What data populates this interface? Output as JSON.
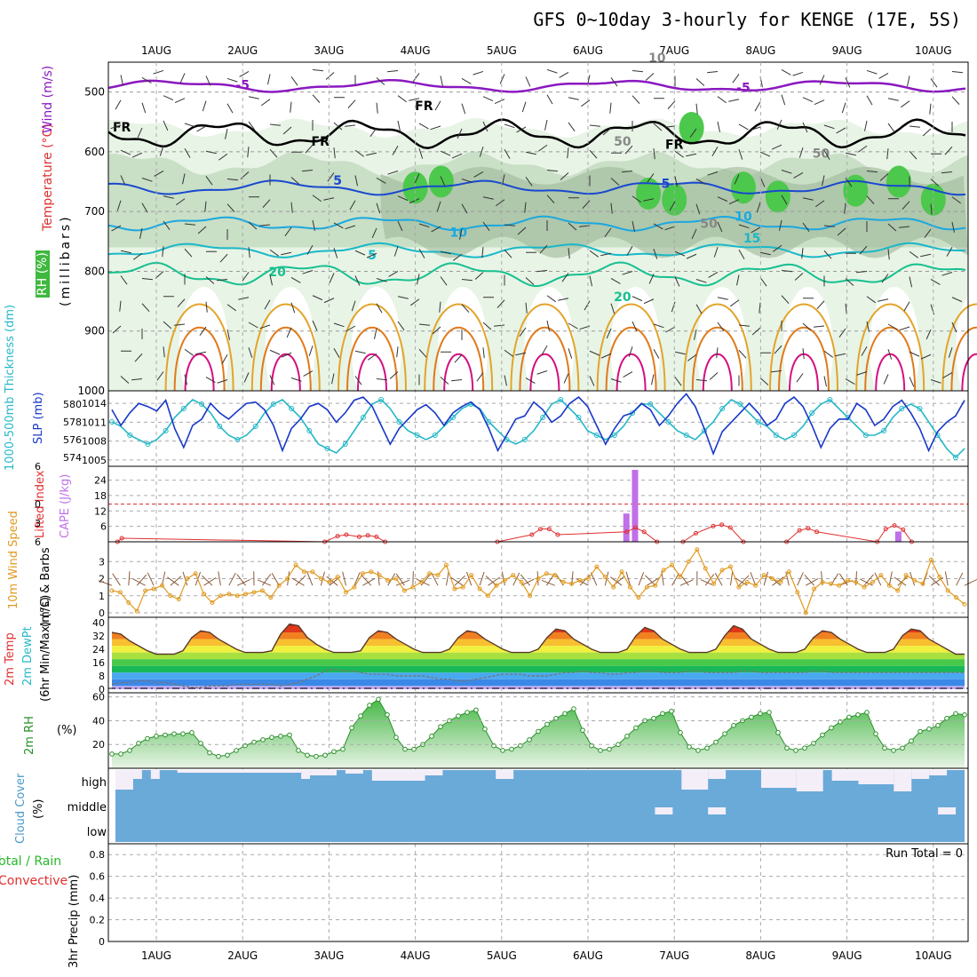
{
  "title": "GFS 0~10day 3-hourly for KENGE (17E, 5S)",
  "dates": [
    "1AUG",
    "2AUG",
    "3AUG",
    "4AUG",
    "5AUG",
    "6AUG",
    "7AUG",
    "8AUG",
    "9AUG",
    "10AUG"
  ],
  "colors": {
    "temp_warm": "#e3a42a",
    "temp_orange": "#e07a1a",
    "temp_hot": "#d41080",
    "temp_20": "#16c090",
    "temp_15": "#18b8c8",
    "temp_10": "#1aa8e0",
    "temp_5": "#1848d0",
    "temp_neg5": "#8a18c0",
    "freezing": "#000000",
    "rh_light": "#e8f4e6",
    "rh_mid": "#c9dfc6",
    "rh_dark": "#9eb89a",
    "rh_green": "#4cc84c",
    "slp": "#1838c8",
    "thickness": "#28b8c8",
    "cape": "#c070e8",
    "lifted": "#e03030",
    "wind_speed": "#e09a20",
    "barbs": "#8a5a3a",
    "rh2m": "#289028",
    "cloud": "#6aaad8",
    "cloud_clear": "#f4eef8"
  },
  "labels": {
    "wind": "Wind (m/s)",
    "temperature": "Temperature (°C)",
    "rh": "RH (%)",
    "millibars": "(millibars)",
    "thickness": "1000-500mb Thickness (dm)",
    "slp": "SLP (mb)",
    "lifted": "Lifted Index",
    "cape": "CAPE (J/kg)",
    "wind10_a": "10m Wind Speed",
    "wind10_b": "(m/s) & Barbs",
    "temp2m_a": "2m Temp",
    "temp2m_b": "2m DewPt",
    "temp2m_c": "(6hr Min/Max) (°C)",
    "rh2m": "2m RH",
    "rh2m_unit": "(%)",
    "cloud_a": "Cloud Cover",
    "cloud_b": "(%)",
    "precip_a": "Total / Rain",
    "precip_b": "Convective",
    "precip_c": "3hr Precip (mm)",
    "run_total": "Run Total = 0",
    "cloud_levels": [
      "high",
      "middle",
      "low"
    ]
  },
  "chart_data": [
    {
      "type": "heatmap",
      "name": "upper-air",
      "ylabel": "millibars",
      "y_ticks": [
        500,
        600,
        700,
        800,
        900,
        1000
      ],
      "ylim": [
        1000,
        450
      ],
      "contour_labels": [
        "-5",
        "-5",
        "5",
        "5",
        "5",
        "10",
        "10",
        "15",
        "20",
        "20",
        "FR",
        "FR",
        "FR",
        "FR",
        "50",
        "50",
        "50",
        "10"
      ],
      "rh_bands_percent": [
        50,
        70,
        90
      ]
    },
    {
      "type": "line",
      "name": "slp-thickness",
      "y_left_ticks": [
        574,
        576,
        578,
        580
      ],
      "y_right_ticks": [
        1005,
        1008,
        1011,
        1014
      ],
      "series": [
        {
          "name": "SLP (mb)",
          "values": [
            1013.0,
            1010.5,
            1012.5,
            1014.0,
            1013.5,
            1012.8,
            1014.5,
            1010.0,
            1007.0,
            1010.5,
            1011.5,
            1014.0,
            1012.5,
            1011.5,
            1012.8,
            1014.0,
            1014.2,
            1013.0,
            1010.5,
            1006.5,
            1010.0,
            1011.5,
            1013.5,
            1014.0,
            1013.0,
            1011.0,
            1012.5,
            1014.5,
            1015.0,
            1013.5,
            1010.5,
            1007.5,
            1010.0,
            1011.5,
            1013.0,
            1013.8,
            1012.5,
            1010.5,
            1012.5,
            1013.5,
            1014.2,
            1013.0,
            1010.0,
            1006.5,
            1009.0,
            1011.5,
            1012.0,
            1014.2,
            1013.0,
            1011.0,
            1012.0,
            1014.0,
            1015.0,
            1013.5,
            1010.5,
            1007.5,
            1010.0,
            1012.0,
            1012.5,
            1014.0,
            1013.0,
            1010.5,
            1012.0,
            1014.0,
            1015.5,
            1013.5,
            1010.0,
            1006.0,
            1009.5,
            1011.0,
            1012.5,
            1014.0,
            1012.5,
            1010.5,
            1011.5,
            1014.0,
            1015.0,
            1013.5,
            1010.5,
            1007.0,
            1010.0,
            1011.5,
            1011.5,
            1014.0,
            1013.0,
            1010.5,
            1011.5,
            1013.5,
            1014.5,
            1012.5,
            1010.0,
            1006.5,
            1009.5,
            1011.0,
            1012.0,
            1014.5
          ]
        },
        {
          "name": "1000-500mb Thickness (dm)",
          "values": [
            578.0,
            577.5,
            576.5,
            576.0,
            575.5,
            576.0,
            577.0,
            578.5,
            579.5,
            580.5,
            580.0,
            579.0,
            577.5,
            576.5,
            576.0,
            576.5,
            577.5,
            579.0,
            580.0,
            580.5,
            579.5,
            578.5,
            577.0,
            575.5,
            575.0,
            574.5,
            575.5,
            577.0,
            578.5,
            580.0,
            580.5,
            579.5,
            578.0,
            577.0,
            576.5,
            576.0,
            576.5,
            577.5,
            578.5,
            579.5,
            580.0,
            579.5,
            578.0,
            577.0,
            576.0,
            575.5,
            576.0,
            577.0,
            578.5,
            580.0,
            580.5,
            579.5,
            578.5,
            577.0,
            576.5,
            576.0,
            576.5,
            577.5,
            579.0,
            580.0,
            580.0,
            579.0,
            578.0,
            577.0,
            576.5,
            576.0,
            577.0,
            578.0,
            579.5,
            580.5,
            580.0,
            579.0,
            578.0,
            577.5,
            576.5,
            576.0,
            576.5,
            577.5,
            579.0,
            580.0,
            580.5,
            579.5,
            578.5,
            577.5,
            576.5,
            576.5,
            577.0,
            578.5,
            579.5,
            580.0,
            579.5,
            578.0,
            576.5,
            575.0,
            574.0,
            575.0
          ]
        }
      ]
    },
    {
      "type": "bar",
      "name": "cape-lifted",
      "y_left_ticks": [
        6,
        0,
        -3,
        -6
      ],
      "y_right_ticks": [
        6,
        12,
        18,
        24
      ],
      "series": [
        {
          "name": "CAPE (J/kg)",
          "x_days": [
            6.45,
            6.55,
            9.6
          ],
          "values": [
            11,
            28,
            4
          ]
        },
        {
          "name": "Lifted Index",
          "x_days": [
            0.55,
            0.6,
            2.95,
            3.1,
            3.2,
            3.35,
            3.45,
            3.55,
            3.65,
            4.95,
            5.35,
            5.45,
            5.55,
            5.65,
            6.45,
            6.55,
            6.65,
            6.8,
            7.1,
            7.25,
            7.45,
            7.55,
            7.65,
            7.8,
            8.3,
            8.45,
            8.55,
            8.65,
            9.35,
            9.45,
            9.55,
            9.65,
            9.75
          ],
          "values": [
            6,
            5.5,
            6,
            5.2,
            5.0,
            5.3,
            5.1,
            5.3,
            6,
            6,
            5,
            4.2,
            4.2,
            5,
            4.6,
            4.0,
            4.6,
            6,
            6,
            4.8,
            3.8,
            3.6,
            4.0,
            6,
            6,
            4.4,
            4.1,
            4.6,
            6,
            4.2,
            3.7,
            4.3,
            6
          ]
        }
      ]
    },
    {
      "type": "line",
      "name": "wind10m",
      "y_ticks": [
        0,
        1,
        2,
        3
      ],
      "ylabel": "m/s",
      "series": [
        {
          "name": "10m Wind Speed",
          "values": [
            1.3,
            1.2,
            0.6,
            0.1,
            1.3,
            1.4,
            1.6,
            1.0,
            0.8,
            2.0,
            2.3,
            1.1,
            0.6,
            1.0,
            1.1,
            1.0,
            1.1,
            1.2,
            1.3,
            0.9,
            1.6,
            2.0,
            2.8,
            2.4,
            2.4,
            2.0,
            1.8,
            2.1,
            1.2,
            1.5,
            2.3,
            2.4,
            2.2,
            1.9,
            2.0,
            1.3,
            1.5,
            1.8,
            2.3,
            2.2,
            2.8,
            1.4,
            1.5,
            2.2,
            1.4,
            1.0,
            1.6,
            1.9,
            2.2,
            1.8,
            1.0,
            2.0,
            2.3,
            2.2,
            1.8,
            1.7,
            1.9,
            2.0,
            2.7,
            2.1,
            1.5,
            2.4,
            1.5,
            0.9,
            1.5,
            1.6,
            2.5,
            2.8,
            2.1,
            3.0,
            3.7,
            2.6,
            1.7,
            2.5,
            2.7,
            1.5,
            1.8,
            1.6,
            2.2,
            2.0,
            1.8,
            2.4,
            1.2,
            0.0,
            1.4,
            1.8,
            1.7,
            1.6,
            1.9,
            1.8,
            1.5,
            1.8,
            2.2,
            1.6,
            1.3,
            2.2,
            1.9,
            1.7,
            3.1,
            2.1,
            1.3,
            0.9,
            0.5
          ]
        }
      ]
    },
    {
      "type": "area",
      "name": "temp2m",
      "y_ticks": [
        0,
        8,
        16,
        24,
        32,
        40
      ],
      "ylabel": "°C",
      "series": [
        {
          "name": "2m Temp",
          "values": [
            34,
            33,
            29,
            26,
            23,
            21,
            21,
            21,
            23,
            31,
            35,
            34,
            30,
            27,
            24,
            22,
            22,
            22,
            23,
            33,
            39,
            38,
            31,
            27,
            24,
            22,
            22,
            22,
            23,
            31,
            35,
            34,
            30,
            27,
            24,
            22,
            22,
            22,
            24,
            31,
            35,
            34,
            30,
            27,
            24,
            22,
            22,
            22,
            24,
            31,
            36,
            35,
            30,
            27,
            24,
            22,
            22,
            22,
            24,
            32,
            37,
            35,
            30,
            27,
            24,
            22,
            22,
            22,
            24,
            32,
            38,
            36,
            30,
            27,
            24,
            22,
            22,
            22,
            24,
            31,
            35,
            34,
            30,
            27,
            24,
            22,
            22,
            22,
            24,
            32,
            36,
            35,
            30,
            27,
            24,
            21,
            21
          ]
        },
        {
          "name": "2m DewPt",
          "values": [
            3,
            4,
            4,
            5,
            5,
            4,
            4,
            3,
            2,
            1,
            1,
            2,
            2,
            2,
            3,
            3,
            3,
            3,
            3,
            2,
            3,
            4,
            6,
            8,
            11,
            12,
            11,
            11,
            10,
            9,
            9,
            9,
            8,
            8,
            8,
            8,
            7,
            6,
            6,
            5,
            5,
            6,
            7,
            8,
            9,
            9,
            9,
            8,
            8,
            8,
            9,
            10,
            10,
            11,
            10,
            10,
            9,
            9,
            10,
            10,
            11,
            11,
            10,
            10,
            10,
            11,
            11,
            10,
            10,
            10,
            10,
            11,
            11,
            10,
            10,
            10,
            10,
            10,
            10,
            11,
            11,
            10,
            10,
            10,
            10,
            10,
            10,
            10,
            10,
            10,
            10,
            10,
            10,
            10,
            10,
            10,
            10
          ]
        }
      ]
    },
    {
      "type": "area",
      "name": "rh2m",
      "y_ticks": [
        20,
        40,
        60
      ],
      "ylabel": "%",
      "series": [
        {
          "name": "2m RH",
          "values": [
            12,
            12,
            15,
            21,
            25,
            27,
            28,
            29,
            29,
            30,
            21,
            13,
            10,
            11,
            15,
            19,
            22,
            24,
            26,
            27,
            28,
            15,
            11,
            10,
            11,
            14,
            16,
            34,
            44,
            53,
            58,
            45,
            26,
            16,
            16,
            20,
            27,
            35,
            40,
            44,
            47,
            49,
            33,
            19,
            15,
            16,
            19,
            24,
            31,
            37,
            42,
            46,
            50,
            32,
            19,
            15,
            16,
            20,
            27,
            34,
            40,
            42,
            46,
            48,
            30,
            18,
            15,
            17,
            22,
            29,
            36,
            40,
            43,
            46,
            47,
            30,
            17,
            15,
            17,
            21,
            28,
            34,
            39,
            43,
            45,
            47,
            29,
            17,
            15,
            17,
            23,
            31,
            33,
            36,
            42,
            46,
            45
          ]
        }
      ]
    },
    {
      "type": "bar",
      "name": "cloud-cover",
      "categories": [
        "high",
        "middle",
        "low"
      ]
    },
    {
      "type": "bar",
      "name": "precip3hr",
      "y_ticks": [
        0,
        0.2,
        0.4,
        0.6,
        0.8
      ],
      "ylabel": "mm",
      "values": []
    }
  ]
}
